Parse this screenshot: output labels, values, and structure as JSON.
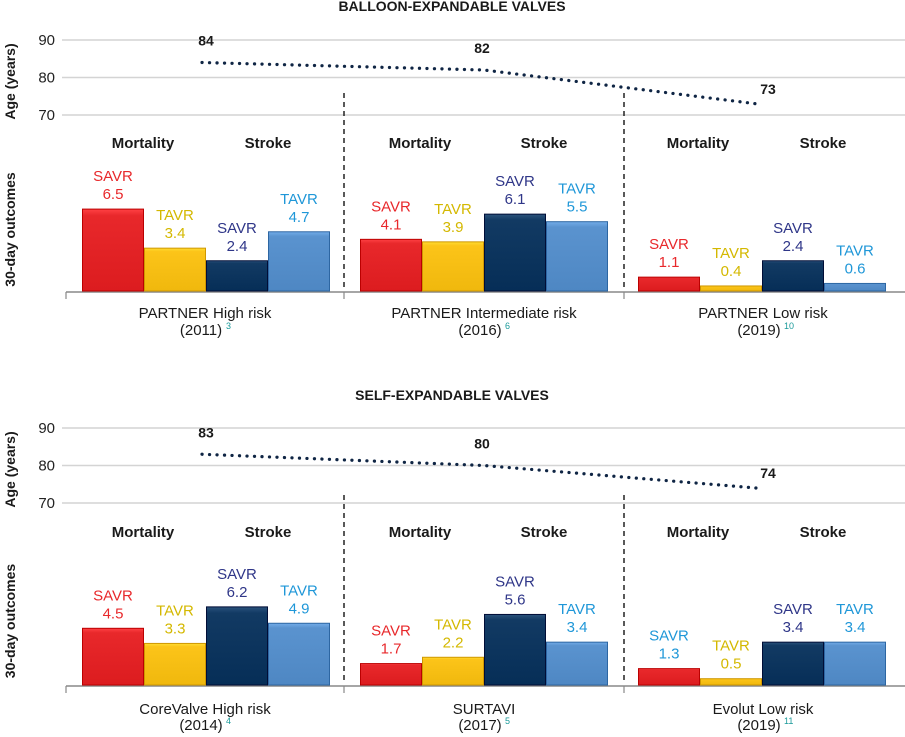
{
  "chart_data": [
    {
      "type": "bar",
      "title": "BALLOON-EXPANDABLE VALVES",
      "age_axis": {
        "ylabel": "Age (years)",
        "ticks": [
          90,
          80,
          70
        ],
        "ylim": [
          70,
          90
        ],
        "grid": true
      },
      "outcome_axis": {
        "ylabel": "30-day outcomes"
      },
      "groups": [
        {
          "trial": "PARTNER High risk",
          "year": "(2011)",
          "ref": "3",
          "age": 84,
          "categories": [
            "Mortality",
            "Stroke"
          ],
          "bars": [
            {
              "label": "SAVR",
              "value": 6.5,
              "outcome": "Mortality",
              "color": "#e8282b",
              "label_color": "#e8282b"
            },
            {
              "label": "TAVR",
              "value": 3.4,
              "outcome": "Mortality",
              "color": "#fcc419",
              "label_color": "#d4b800"
            },
            {
              "label": "SAVR",
              "value": 2.4,
              "outcome": "Stroke",
              "color": "#123a63",
              "label_color": "#2f3688"
            },
            {
              "label": "TAVR",
              "value": 4.7,
              "outcome": "Stroke",
              "color": "#5a93cf",
              "label_color": "#1f97d8"
            }
          ]
        },
        {
          "trial": "PARTNER Intermediate risk",
          "year": "(2016)",
          "ref": "6",
          "age": 82,
          "categories": [
            "Mortality",
            "Stroke"
          ],
          "bars": [
            {
              "label": "SAVR",
              "value": 4.1,
              "outcome": "Mortality",
              "color": "#e8282b",
              "label_color": "#e8282b"
            },
            {
              "label": "TAVR",
              "value": 3.9,
              "outcome": "Mortality",
              "color": "#fcc419",
              "label_color": "#d4b800"
            },
            {
              "label": "SAVR",
              "value": 6.1,
              "outcome": "Stroke",
              "color": "#123a63",
              "label_color": "#2f3688"
            },
            {
              "label": "TAVR",
              "value": 5.5,
              "outcome": "Stroke",
              "color": "#5a93cf",
              "label_color": "#1f97d8"
            }
          ]
        },
        {
          "trial": "PARTNER Low risk",
          "year": "(2019)",
          "ref": "10",
          "age": 73,
          "categories": [
            "Mortality",
            "Stroke"
          ],
          "bars": [
            {
              "label": "SAVR",
              "value": 1.1,
              "outcome": "Mortality",
              "color": "#e8282b",
              "label_color": "#e8282b"
            },
            {
              "label": "TAVR",
              "value": 0.4,
              "outcome": "Mortality",
              "color": "#fcc419",
              "label_color": "#d4b800"
            },
            {
              "label": "SAVR",
              "value": 2.4,
              "outcome": "Stroke",
              "color": "#123a63",
              "label_color": "#2f3688"
            },
            {
              "label": "TAVR",
              "value": 0.6,
              "outcome": "Stroke",
              "color": "#5a93cf",
              "label_color": "#1f97d8"
            }
          ]
        }
      ]
    },
    {
      "type": "bar",
      "title": "SELF-EXPANDABLE VALVES",
      "age_axis": {
        "ylabel": "Age (years)",
        "ticks": [
          90,
          80,
          70
        ],
        "ylim": [
          70,
          90
        ],
        "grid": true
      },
      "outcome_axis": {
        "ylabel": "30-day outcomes"
      },
      "groups": [
        {
          "trial": "CoreValve High risk",
          "year": "(2014)",
          "ref": "4",
          "age": 83,
          "categories": [
            "Mortality",
            "Stroke"
          ],
          "bars": [
            {
              "label": "SAVR",
              "value": 4.5,
              "outcome": "Mortality",
              "color": "#e8282b",
              "label_color": "#e8282b"
            },
            {
              "label": "TAVR",
              "value": 3.3,
              "outcome": "Mortality",
              "color": "#fcc419",
              "label_color": "#d4b800"
            },
            {
              "label": "SAVR",
              "value": 6.2,
              "outcome": "Stroke",
              "color": "#123a63",
              "label_color": "#2f3688"
            },
            {
              "label": "TAVR",
              "value": 4.9,
              "outcome": "Stroke",
              "color": "#5a93cf",
              "label_color": "#1f97d8"
            }
          ]
        },
        {
          "trial": "SURTAVI",
          "year": "(2017)",
          "ref": "5",
          "age": 80,
          "categories": [
            "Mortality",
            "Stroke"
          ],
          "bars": [
            {
              "label": "SAVR",
              "value": 1.7,
              "outcome": "Mortality",
              "color": "#e8282b",
              "label_color": "#e8282b"
            },
            {
              "label": "TAVR",
              "value": 2.2,
              "outcome": "Mortality",
              "color": "#fcc419",
              "label_color": "#d4b800"
            },
            {
              "label": "SAVR",
              "value": 5.6,
              "outcome": "Stroke",
              "color": "#123a63",
              "label_color": "#2f3688"
            },
            {
              "label": "TAVR",
              "value": 3.4,
              "outcome": "Stroke",
              "color": "#5a93cf",
              "label_color": "#1f97d8"
            }
          ]
        },
        {
          "trial": "Evolut Low risk",
          "year": "(2019)",
          "ref": "11",
          "age": 74,
          "categories": [
            "Mortality",
            "Stroke"
          ],
          "bars": [
            {
              "label": "SAVR",
              "value": 1.3,
              "outcome": "Mortality",
              "color": "#e8282b",
              "label_color": "#1f97d8"
            },
            {
              "label": "TAVR",
              "value": 0.5,
              "outcome": "Mortality",
              "color": "#fcc419",
              "label_color": "#d4b800"
            },
            {
              "label": "SAVR",
              "value": 3.4,
              "outcome": "Stroke",
              "color": "#123a63",
              "label_color": "#2f3688"
            },
            {
              "label": "TAVR",
              "value": 3.4,
              "outcome": "Stroke",
              "color": "#5a93cf",
              "label_color": "#1f97d8"
            }
          ]
        }
      ]
    }
  ]
}
